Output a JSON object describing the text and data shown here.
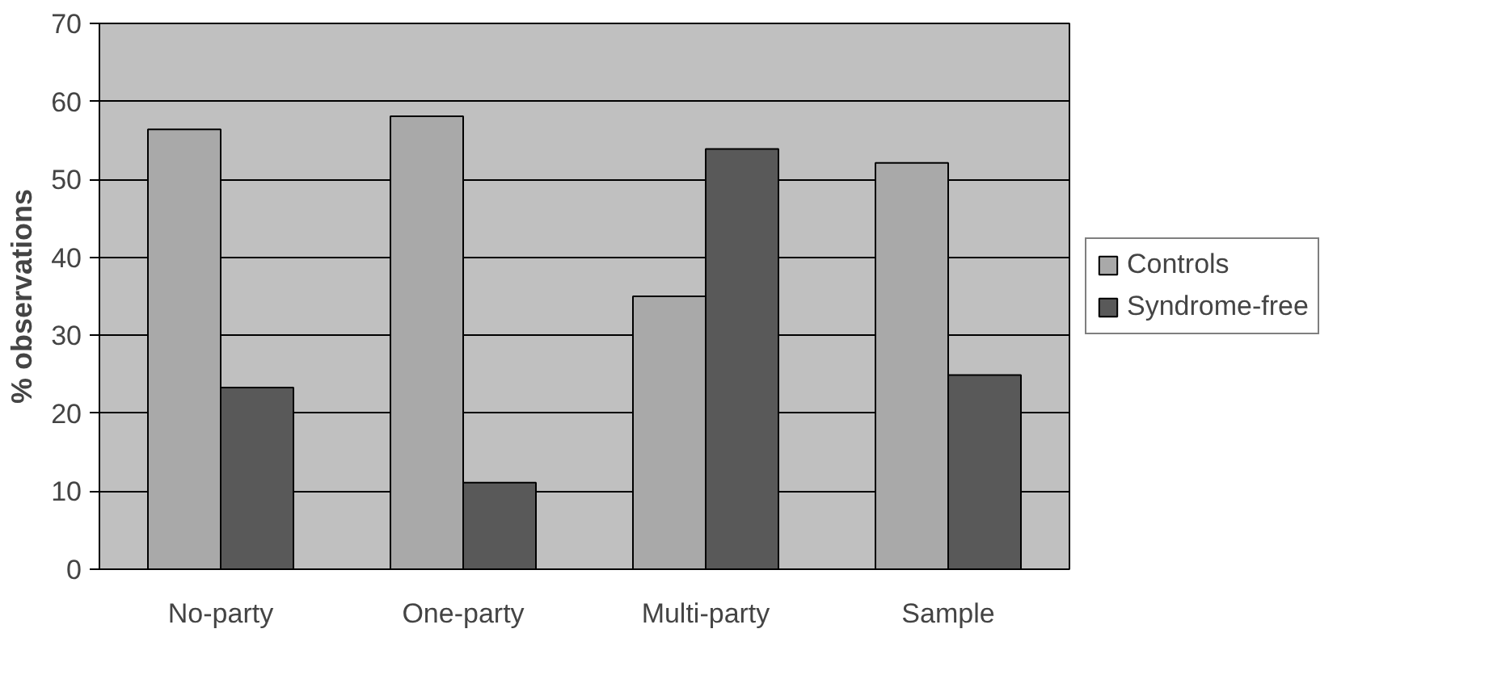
{
  "chart_data": {
    "type": "bar",
    "ylabel": "% observations",
    "categories": [
      "No-party",
      "One-party",
      "Multi-party",
      "Sample"
    ],
    "series": [
      {
        "name": "Controls",
        "color": "#a9a9a9",
        "values": [
          56.4,
          58.1,
          35.0,
          52.1
        ]
      },
      {
        "name": "Syndrome-free",
        "color": "#595959",
        "values": [
          23.3,
          11.1,
          53.9,
          24.9
        ]
      }
    ],
    "ylim": [
      0,
      70
    ],
    "yticks": [
      0,
      10,
      20,
      30,
      40,
      50,
      60,
      70
    ],
    "grid": "y",
    "legend": "right"
  }
}
